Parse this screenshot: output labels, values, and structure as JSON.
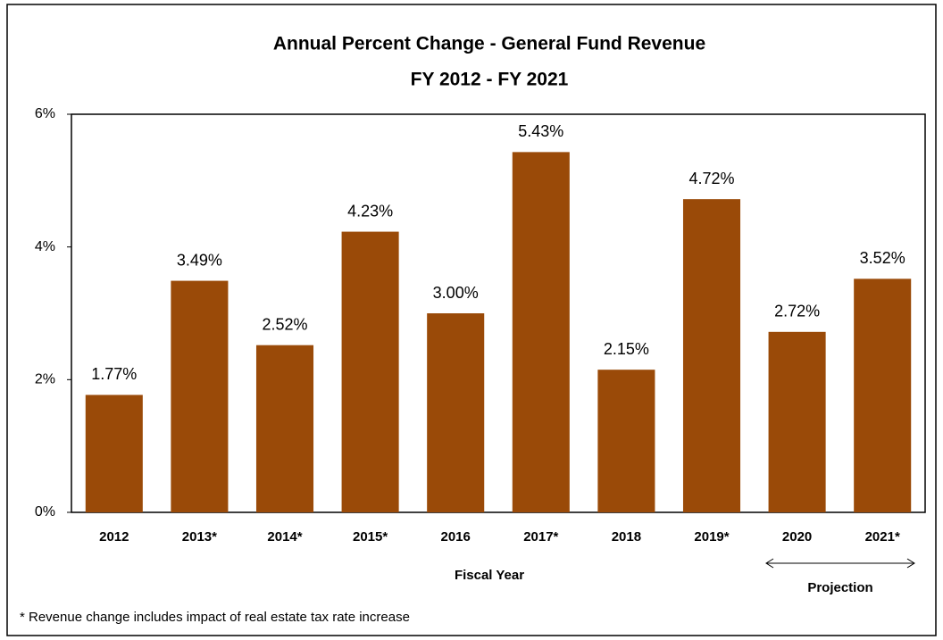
{
  "chart_data": {
    "type": "bar",
    "title": "Annual Percent Change - General Fund Revenue",
    "subtitle": "FY 2012 - FY 2021",
    "x_label": "Fiscal Year",
    "annotations": [
      "Projection",
      "* Revenue change includes impact of real estate tax rate increase"
    ],
    "categories": [
      "2012",
      "2013*",
      "2014*",
      "2015*",
      "2016",
      "2017*",
      "2018",
      "2019*",
      "2020",
      "2021*"
    ],
    "values": [
      1.77,
      3.49,
      2.52,
      4.23,
      3.0,
      5.43,
      2.15,
      4.72,
      2.72,
      3.52
    ],
    "value_labels": [
      "1.77%",
      "3.49%",
      "2.52%",
      "4.23%",
      "3.00%",
      "5.43%",
      "2.15%",
      "4.72%",
      "2.72%",
      "3.52%"
    ],
    "color": "#9a4a08",
    "ylim": [
      0,
      6
    ],
    "yticks": [
      {
        "value": 0,
        "label": "0%"
      },
      {
        "value": 2,
        "label": "2%"
      },
      {
        "value": 4,
        "label": "4%"
      },
      {
        "value": 6,
        "label": "6%"
      }
    ],
    "grid": false
  }
}
